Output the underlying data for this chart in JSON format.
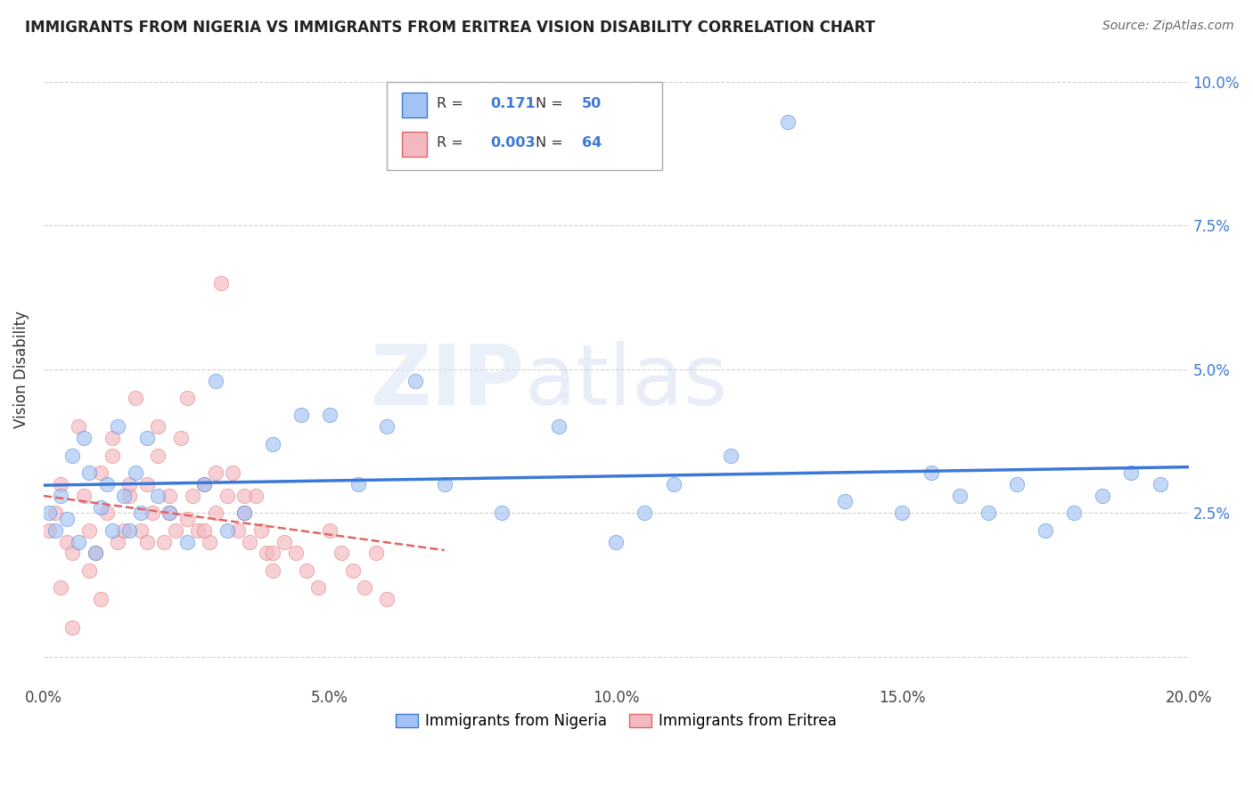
{
  "title": "IMMIGRANTS FROM NIGERIA VS IMMIGRANTS FROM ERITREA VISION DISABILITY CORRELATION CHART",
  "source": "Source: ZipAtlas.com",
  "ylabel": "Vision Disability",
  "legend_labels": [
    "Immigrants from Nigeria",
    "Immigrants from Eritrea"
  ],
  "legend_R": [
    "0.171",
    "0.003"
  ],
  "legend_N": [
    "50",
    "64"
  ],
  "xlim": [
    0.0,
    0.2
  ],
  "ylim": [
    -0.005,
    0.105
  ],
  "xticks": [
    0.0,
    0.05,
    0.1,
    0.15,
    0.2
  ],
  "xtick_labels": [
    "0.0%",
    "5.0%",
    "10.0%",
    "15.0%",
    "20.0%"
  ],
  "yticks": [
    0.0,
    0.025,
    0.05,
    0.075,
    0.1
  ],
  "ytick_labels": [
    "",
    "2.5%",
    "5.0%",
    "7.5%",
    "10.0%"
  ],
  "color_nigeria": "#a4c2f4",
  "color_eritrea": "#f4b8c1",
  "color_nigeria_line": "#3c78d8",
  "color_eritrea_line": "#e06666",
  "watermark_zip": "ZIP",
  "watermark_atlas": "atlas",
  "background_color": "#ffffff",
  "nigeria_x": [
    0.001,
    0.002,
    0.003,
    0.004,
    0.005,
    0.006,
    0.007,
    0.008,
    0.009,
    0.01,
    0.011,
    0.012,
    0.013,
    0.014,
    0.015,
    0.016,
    0.017,
    0.018,
    0.02,
    0.022,
    0.025,
    0.028,
    0.03,
    0.032,
    0.035,
    0.04,
    0.045,
    0.05,
    0.055,
    0.06,
    0.065,
    0.07,
    0.08,
    0.09,
    0.1,
    0.105,
    0.11,
    0.12,
    0.13,
    0.14,
    0.15,
    0.155,
    0.16,
    0.165,
    0.17,
    0.175,
    0.18,
    0.185,
    0.19,
    0.195
  ],
  "nigeria_y": [
    0.025,
    0.022,
    0.028,
    0.024,
    0.035,
    0.02,
    0.038,
    0.032,
    0.018,
    0.026,
    0.03,
    0.022,
    0.04,
    0.028,
    0.022,
    0.032,
    0.025,
    0.038,
    0.028,
    0.025,
    0.02,
    0.03,
    0.048,
    0.022,
    0.025,
    0.037,
    0.042,
    0.042,
    0.03,
    0.04,
    0.048,
    0.03,
    0.025,
    0.04,
    0.02,
    0.025,
    0.03,
    0.035,
    0.093,
    0.027,
    0.025,
    0.032,
    0.028,
    0.025,
    0.03,
    0.022,
    0.025,
    0.028,
    0.032,
    0.03
  ],
  "eritrea_x": [
    0.001,
    0.002,
    0.003,
    0.004,
    0.005,
    0.006,
    0.007,
    0.008,
    0.009,
    0.01,
    0.011,
    0.012,
    0.013,
    0.014,
    0.015,
    0.016,
    0.017,
    0.018,
    0.019,
    0.02,
    0.021,
    0.022,
    0.023,
    0.024,
    0.025,
    0.026,
    0.027,
    0.028,
    0.029,
    0.03,
    0.031,
    0.032,
    0.033,
    0.034,
    0.035,
    0.036,
    0.037,
    0.038,
    0.039,
    0.04,
    0.042,
    0.044,
    0.046,
    0.048,
    0.05,
    0.052,
    0.054,
    0.056,
    0.058,
    0.06,
    0.012,
    0.015,
    0.018,
    0.02,
    0.022,
    0.025,
    0.028,
    0.03,
    0.035,
    0.04,
    0.003,
    0.005,
    0.008,
    0.01
  ],
  "eritrea_y": [
    0.022,
    0.025,
    0.03,
    0.02,
    0.018,
    0.04,
    0.028,
    0.022,
    0.018,
    0.032,
    0.025,
    0.035,
    0.02,
    0.022,
    0.028,
    0.045,
    0.022,
    0.03,
    0.025,
    0.035,
    0.02,
    0.028,
    0.022,
    0.038,
    0.024,
    0.028,
    0.022,
    0.03,
    0.02,
    0.025,
    0.065,
    0.028,
    0.032,
    0.022,
    0.025,
    0.02,
    0.028,
    0.022,
    0.018,
    0.015,
    0.02,
    0.018,
    0.015,
    0.012,
    0.022,
    0.018,
    0.015,
    0.012,
    0.018,
    0.01,
    0.038,
    0.03,
    0.02,
    0.04,
    0.025,
    0.045,
    0.022,
    0.032,
    0.028,
    0.018,
    0.012,
    0.005,
    0.015,
    0.01
  ]
}
